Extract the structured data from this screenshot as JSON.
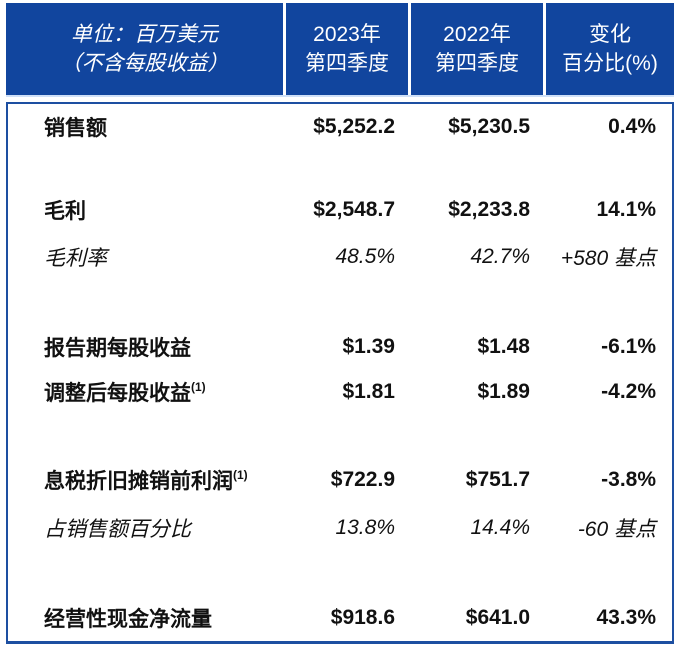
{
  "chart_data": {
    "type": "table",
    "title": "季度财务摘要：2023年第四季度 vs 2022年第四季度（单位：百万美元，不含每股收益）",
    "columns": [
      "单位：百万美元（不含每股收益）",
      "2023年第四季度",
      "2022年第四季度",
      "变化百分比(%)"
    ],
    "rows": [
      [
        "销售额",
        "$5,252.2",
        "$5,230.5",
        "0.4%"
      ],
      [
        "毛利",
        "$2,548.7",
        "$2,233.8",
        "14.1%"
      ],
      [
        "毛利率",
        "48.5%",
        "42.7%",
        "+580 基点"
      ],
      [
        "报告期每股收益",
        "$1.39",
        "$1.48",
        "-6.1%"
      ],
      [
        "调整后每股收益(1)",
        "$1.81",
        "$1.89",
        "-4.2%"
      ],
      [
        "息税折旧摊销前利润(1)",
        "$722.9",
        "$751.7",
        "-3.8%"
      ],
      [
        "占销售额百分比",
        "13.8%",
        "14.4%",
        "-60 基点"
      ],
      [
        "经营性现金净流量",
        "$918.6",
        "$641.0",
        "43.3%"
      ]
    ]
  },
  "header": {
    "unit": {
      "line1": "单位：百万美元",
      "line2": "（不含每股收益）"
    },
    "col2023": {
      "line1": "2023年",
      "line2": "第四季度"
    },
    "col2022": {
      "line1": "2022年",
      "line2": "第四季度"
    },
    "colChange": {
      "line1": "变化",
      "line2": "百分比(%)"
    }
  },
  "rows": [
    {
      "label": "销售额",
      "v2023": "$5,252.2",
      "v2022": "$5,230.5",
      "change": "0.4%"
    },
    {
      "label": "毛利",
      "v2023": "$2,548.7",
      "v2022": "$2,233.8",
      "change": "14.1%"
    },
    {
      "label": "毛利率",
      "v2023": "48.5%",
      "v2022": "42.7%",
      "change": "+580 基点"
    },
    {
      "label": "报告期每股收益",
      "v2023": "$1.39",
      "v2022": "$1.48",
      "change": "-6.1%"
    },
    {
      "label": "调整后每股收益",
      "footnote": "(1)",
      "v2023": "$1.81",
      "v2022": "$1.89",
      "change": "-4.2%"
    },
    {
      "label": "息税折旧摊销前利润",
      "footnote": "(1)",
      "v2023": "$722.9",
      "v2022": "$751.7",
      "change": "-3.8%"
    },
    {
      "label": "占销售额百分比",
      "v2023": "13.8%",
      "v2022": "14.4%",
      "change": "-60 基点"
    },
    {
      "label": "经营性现金净流量",
      "v2023": "$918.6",
      "v2022": "$641.0",
      "change": "43.3%"
    }
  ],
  "colors": {
    "header_bg": "#11459E",
    "header_text": "#FFFFFF",
    "border_blue": "#1D4FA1",
    "body_text": "#111111",
    "body_bg": "#FFFFFF"
  }
}
